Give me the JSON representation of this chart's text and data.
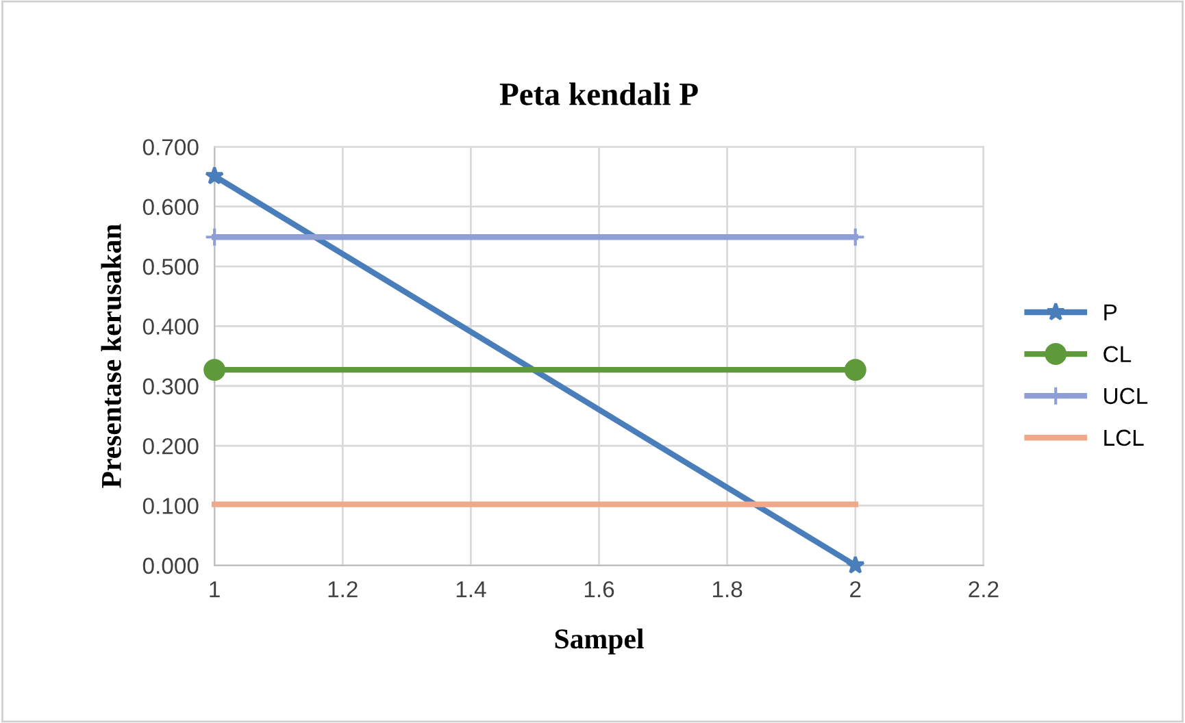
{
  "chart_data": {
    "type": "line",
    "title": "Peta kendali P",
    "xlabel": "Sampel",
    "ylabel": "Presentase kerusakan",
    "x": [
      1,
      2
    ],
    "series": [
      {
        "name": "P",
        "color": "#4a7ebb",
        "values": [
          0.651,
          0.0
        ],
        "marker": "star"
      },
      {
        "name": "CL",
        "color": "#5f9a3a",
        "values": [
          0.327,
          0.327
        ],
        "marker": "circle"
      },
      {
        "name": "UCL",
        "color": "#8e9fd6",
        "values": [
          0.549,
          0.549
        ],
        "marker": "cross"
      },
      {
        "name": "LCL",
        "color": "#f0a78a",
        "values": [
          0.102,
          0.102
        ],
        "marker": "none"
      }
    ],
    "xlim": [
      1,
      2.2
    ],
    "xticks": [
      1,
      1.2,
      1.4,
      1.6,
      1.8,
      2,
      2.2
    ],
    "ylim": [
      0,
      0.7
    ],
    "yticks": [
      {
        "value": 0,
        "label": "0.000"
      },
      {
        "value": 0.1,
        "label": "0.100"
      },
      {
        "value": 0.2,
        "label": "0.200"
      },
      {
        "value": 0.3,
        "label": "0.300"
      },
      {
        "value": 0.4,
        "label": "0.400"
      },
      {
        "value": 0.5,
        "label": "0.500"
      },
      {
        "value": 0.6,
        "label": "0.600"
      },
      {
        "value": 0.7,
        "label": "0.700"
      }
    ],
    "grid": true,
    "legend": "right",
    "line_style": "solid"
  }
}
